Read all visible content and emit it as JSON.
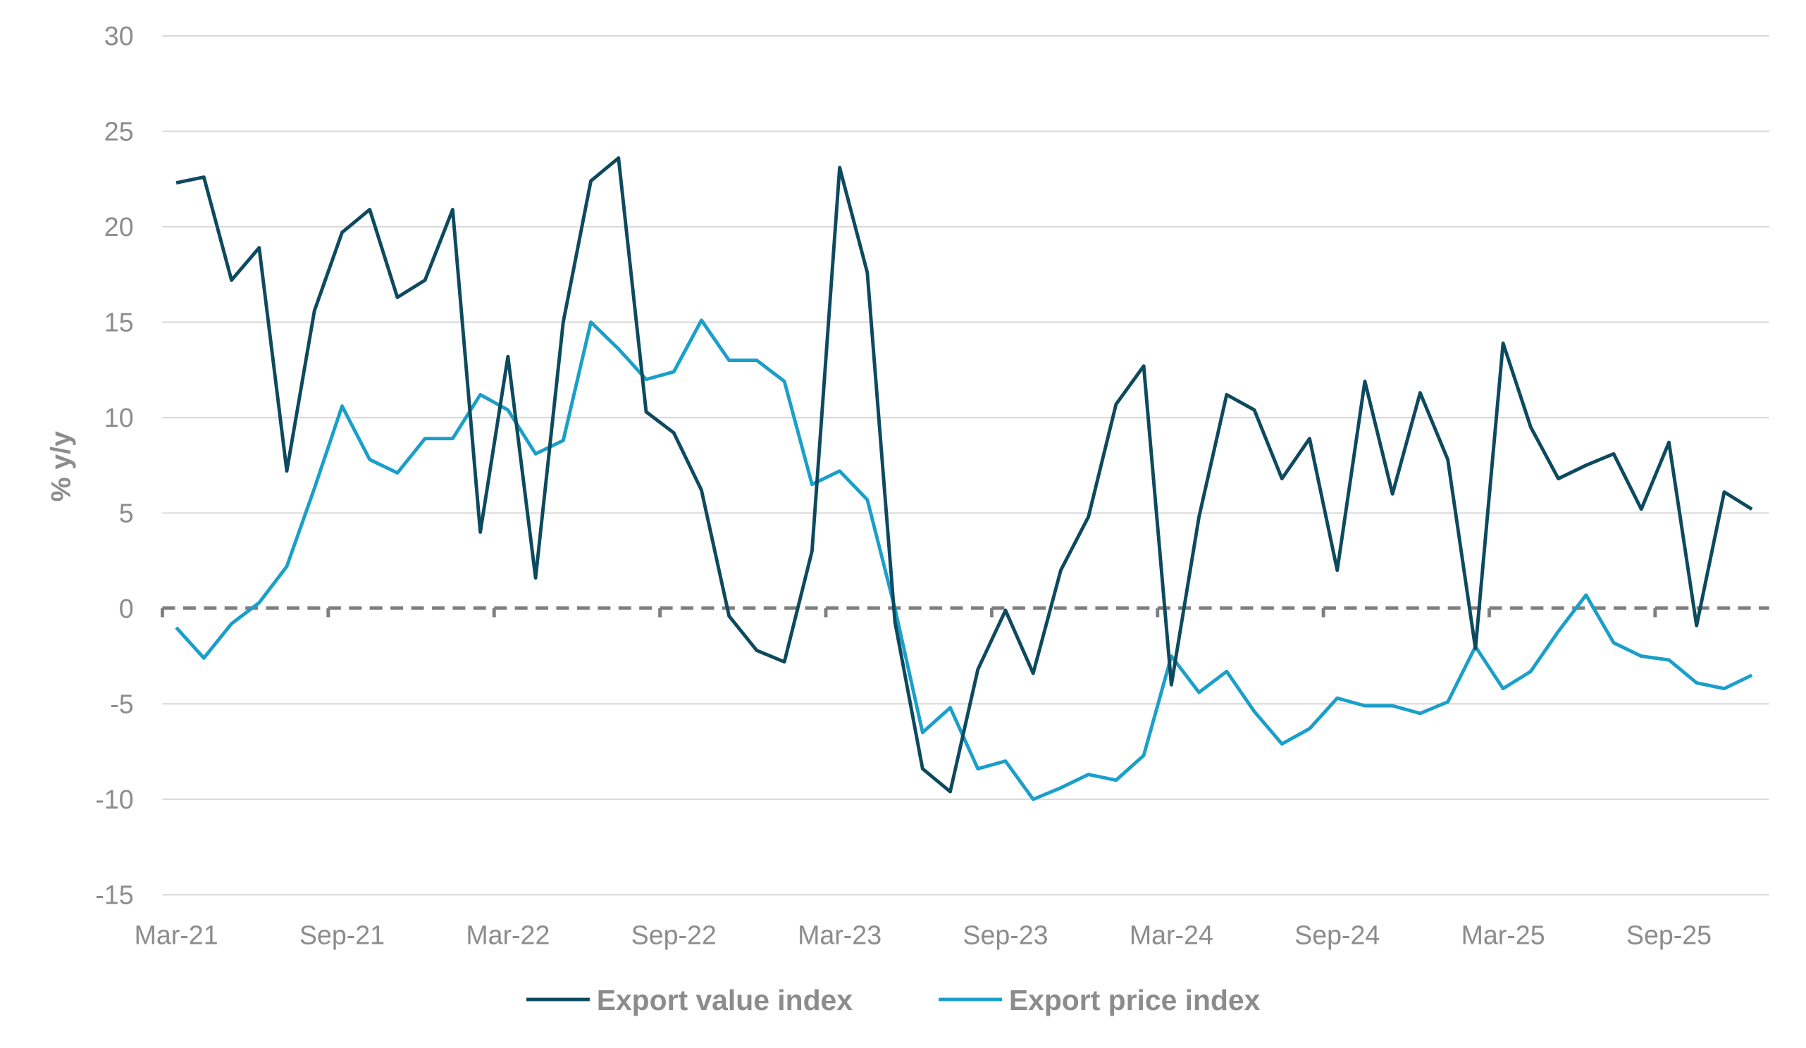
{
  "chart_data": {
    "type": "line",
    "title": "",
    "xlabel": "",
    "ylabel": "% y/y",
    "ylim": [
      -15,
      30
    ],
    "yticks": [
      30,
      25,
      20,
      15,
      10,
      5,
      0,
      -5,
      -10,
      -15
    ],
    "xtick_labels": [
      "Mar-21",
      "Sep-21",
      "Mar-22",
      "Sep-22",
      "Mar-23",
      "Sep-23",
      "Mar-24",
      "Sep-24",
      "Mar-25",
      "Sep-25"
    ],
    "x_start": "Mar-21",
    "x_end": "Dec-25",
    "frequency": "monthly",
    "grid": "horizontal",
    "zero_line": "dashed",
    "legend_position": "bottom",
    "series": [
      {
        "name": "Export value index",
        "color": "#0d4a5f",
        "values": [
          22.3,
          22.6,
          17.2,
          18.9,
          7.2,
          15.6,
          19.7,
          20.9,
          16.3,
          17.2,
          20.9,
          4.0,
          13.2,
          1.6,
          15.0,
          22.4,
          23.6,
          10.3,
          9.2,
          6.2,
          -0.4,
          -2.2,
          -2.8,
          3.0,
          23.1,
          17.6,
          -0.7,
          -8.4,
          -9.6,
          -3.2,
          -0.1,
          -3.4,
          2.0,
          4.8,
          10.7,
          12.7,
          -4.0,
          4.8,
          11.2,
          10.4,
          6.8,
          8.9,
          2.0,
          11.9,
          6.0,
          11.3,
          7.8,
          -2.1,
          13.9,
          9.5,
          6.8,
          7.5,
          8.1,
          5.2,
          8.7,
          -0.9,
          6.1,
          5.2
        ]
      },
      {
        "name": "Export price index",
        "color": "#1a9fca",
        "values": [
          -1.0,
          -2.6,
          -0.8,
          0.3,
          2.2,
          6.3,
          10.6,
          7.8,
          7.1,
          8.9,
          8.9,
          11.2,
          10.4,
          8.1,
          8.8,
          15.0,
          13.6,
          12.0,
          12.4,
          15.1,
          13.0,
          13.0,
          11.9,
          6.5,
          7.2,
          5.7,
          0.0,
          -6.5,
          -5.2,
          -8.4,
          -8.0,
          -10.0,
          -9.4,
          -8.7,
          -9.0,
          -7.7,
          -2.5,
          -4.4,
          -3.3,
          -5.4,
          -7.1,
          -6.3,
          -4.7,
          -5.1,
          -5.1,
          -5.5,
          -4.9,
          -2.0,
          -4.2,
          -3.3,
          -1.2,
          0.7,
          -1.8,
          -2.5,
          -2.7,
          -3.9,
          -4.2,
          -3.5
        ]
      }
    ]
  }
}
